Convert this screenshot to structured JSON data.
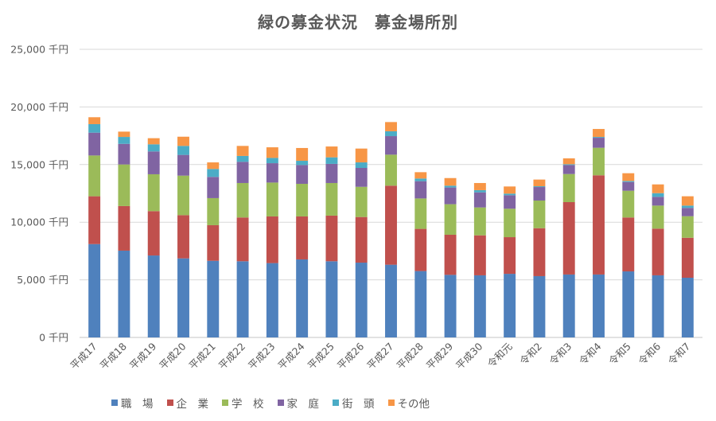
{
  "chart_data": {
    "type": "bar",
    "stacked": true,
    "title": "緑の募金状況　募金場所別",
    "xlabel": "",
    "ylabel": "",
    "ylim": [
      0,
      25000
    ],
    "yticks": [
      0,
      5000,
      10000,
      15000,
      20000,
      25000
    ],
    "ytick_labels": [
      "0 千円",
      "5,000 千円",
      "10,000 千円",
      "15,000 千円",
      "20,000 千円",
      "25,000 千円"
    ],
    "grid": true,
    "legend_position": "bottom",
    "categories": [
      "平成17",
      "平成18",
      "平成19",
      "平成20",
      "平成21",
      "平成22",
      "平成23",
      "平成24",
      "平成25",
      "平成26",
      "平成27",
      "平成28",
      "平成29",
      "平成30",
      "令和元",
      "令和2",
      "令和3",
      "令和4",
      "令和5",
      "令和6",
      "令和7"
    ],
    "series": [
      {
        "name": "職　場",
        "color": "#4F81BD",
        "values": [
          8100,
          7530,
          7110,
          6860,
          6650,
          6610,
          6450,
          6770,
          6610,
          6490,
          6310,
          5760,
          5430,
          5390,
          5520,
          5320,
          5460,
          5460,
          5730,
          5390,
          5180
        ]
      },
      {
        "name": "企　業",
        "color": "#C0504D",
        "values": [
          4150,
          3870,
          3850,
          3750,
          3090,
          3800,
          4050,
          3730,
          3960,
          3960,
          6860,
          3660,
          3480,
          3470,
          3180,
          4160,
          6280,
          8610,
          4680,
          4050,
          3470
        ]
      },
      {
        "name": "学　校",
        "color": "#9BBB59",
        "values": [
          3540,
          3610,
          3200,
          3430,
          2350,
          2990,
          2940,
          2830,
          2830,
          2620,
          2690,
          2640,
          2650,
          2420,
          2470,
          2400,
          2440,
          2390,
          2320,
          2000,
          1870
        ]
      },
      {
        "name": "家　庭",
        "color": "#8064A2",
        "values": [
          1980,
          1790,
          1980,
          1800,
          1840,
          1840,
          1680,
          1630,
          1660,
          1640,
          1610,
          1500,
          1450,
          1310,
          1170,
          1170,
          780,
          870,
          760,
          760,
          720
        ]
      },
      {
        "name": "街　頭",
        "color": "#4BACC6",
        "values": [
          740,
          600,
          620,
          780,
          690,
          510,
          460,
          370,
          570,
          480,
          420,
          230,
          160,
          190,
          140,
          70,
          70,
          70,
          90,
          320,
          200
        ]
      },
      {
        "name": "その他",
        "color": "#F79646",
        "values": [
          600,
          460,
          530,
          800,
          570,
          870,
          920,
          1110,
          940,
          1200,
          800,
          550,
          660,
          620,
          620,
          580,
          510,
          690,
          670,
          760,
          810
        ]
      }
    ]
  }
}
